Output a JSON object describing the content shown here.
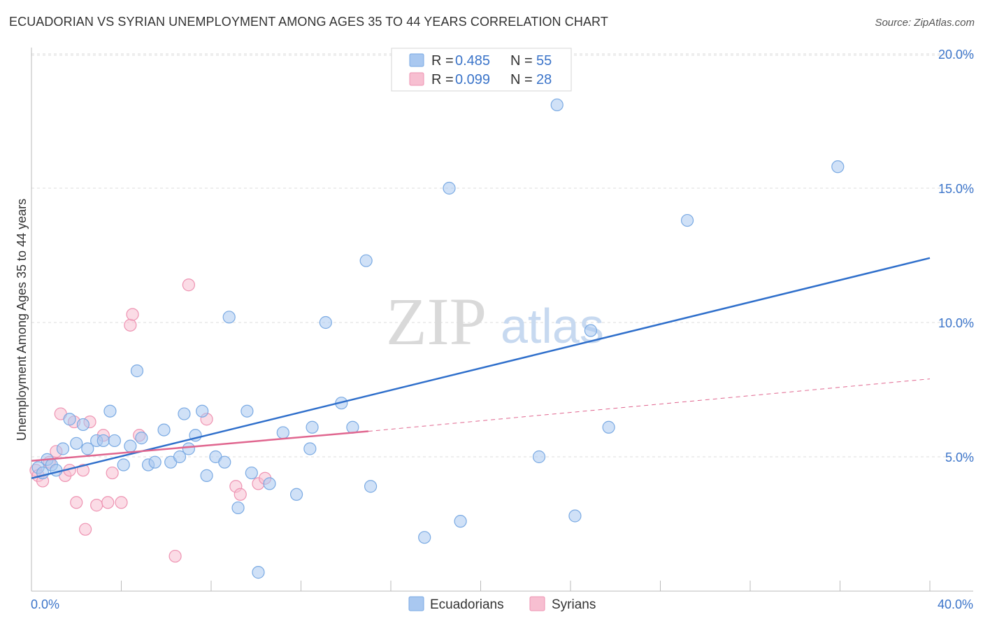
{
  "title": "ECUADORIAN VS SYRIAN UNEMPLOYMENT AMONG AGES 35 TO 44 YEARS CORRELATION CHART",
  "source": "Source: ZipAtlas.com",
  "watermark": {
    "part1": "ZIP",
    "part2": "atlas"
  },
  "colors": {
    "blue_fill": "#a9c8f0",
    "blue_stroke": "#7aaae3",
    "blue_line": "#2f6fcb",
    "pink_fill": "#f7bfd1",
    "pink_stroke": "#ee93b2",
    "pink_line": "#e0668f",
    "grid": "#dddddd",
    "axis_text": "#3b74c9"
  },
  "legend": {
    "rows": [
      {
        "r_label": "R =",
        "r_value": "0.485",
        "n_label": "N =",
        "n_value": "55",
        "series": "Ecuadorians"
      },
      {
        "r_label": "R =",
        "r_value": "0.099",
        "n_label": "N =",
        "n_value": "28",
        "series": "Syrians"
      }
    ]
  },
  "bottom_legend": [
    "Ecuadorians",
    "Syrians"
  ],
  "chart_data": {
    "type": "scatter",
    "title": "ECUADORIAN VS SYRIAN UNEMPLOYMENT AMONG AGES 35 TO 44 YEARS CORRELATION CHART",
    "xlabel": "",
    "ylabel": "Unemployment Among Ages 35 to 44 years",
    "xlim": [
      0,
      40
    ],
    "ylim": [
      0,
      20.5
    ],
    "x_tick_labels": {
      "left": "0.0%",
      "right": "40.0%"
    },
    "y_ticks": [
      {
        "value": 5,
        "label": "5.0%"
      },
      {
        "value": 10,
        "label": "10.0%"
      },
      {
        "value": 15,
        "label": "15.0%"
      },
      {
        "value": 20,
        "label": "20.0%"
      }
    ],
    "series": [
      {
        "name": "Ecuadorians",
        "color": "blue",
        "points": [
          [
            0.3,
            4.6
          ],
          [
            0.5,
            4.4
          ],
          [
            0.7,
            4.9
          ],
          [
            0.9,
            4.7
          ],
          [
            1.1,
            4.5
          ],
          [
            1.4,
            5.3
          ],
          [
            1.7,
            6.4
          ],
          [
            2.0,
            5.5
          ],
          [
            2.3,
            6.2
          ],
          [
            2.5,
            5.3
          ],
          [
            2.9,
            5.6
          ],
          [
            3.2,
            5.6
          ],
          [
            3.5,
            6.7
          ],
          [
            3.7,
            5.6
          ],
          [
            4.1,
            4.7
          ],
          [
            4.4,
            5.4
          ],
          [
            4.7,
            8.2
          ],
          [
            4.9,
            5.7
          ],
          [
            5.2,
            4.7
          ],
          [
            5.5,
            4.8
          ],
          [
            5.9,
            6.0
          ],
          [
            6.2,
            4.8
          ],
          [
            6.6,
            5.0
          ],
          [
            6.8,
            6.6
          ],
          [
            7.0,
            5.3
          ],
          [
            7.3,
            5.8
          ],
          [
            7.6,
            6.7
          ],
          [
            7.8,
            4.3
          ],
          [
            8.2,
            5.0
          ],
          [
            8.6,
            4.8
          ],
          [
            8.8,
            10.2
          ],
          [
            9.2,
            3.1
          ],
          [
            9.6,
            6.7
          ],
          [
            9.8,
            4.4
          ],
          [
            10.1,
            0.7
          ],
          [
            10.6,
            4.0
          ],
          [
            11.2,
            5.9
          ],
          [
            11.8,
            3.6
          ],
          [
            12.4,
            5.3
          ],
          [
            12.5,
            6.1
          ],
          [
            13.1,
            10.0
          ],
          [
            13.8,
            7.0
          ],
          [
            14.3,
            6.1
          ],
          [
            14.9,
            12.3
          ],
          [
            15.1,
            3.9
          ],
          [
            17.5,
            2.0
          ],
          [
            18.6,
            15.0
          ],
          [
            19.1,
            2.6
          ],
          [
            22.6,
            5.0
          ],
          [
            23.4,
            18.1
          ],
          [
            24.2,
            2.8
          ],
          [
            24.9,
            9.7
          ],
          [
            25.7,
            6.1
          ],
          [
            29.2,
            13.8
          ],
          [
            35.9,
            15.8
          ]
        ]
      },
      {
        "name": "Syrians",
        "color": "pink",
        "points": [
          [
            0.2,
            4.5
          ],
          [
            0.3,
            4.3
          ],
          [
            0.5,
            4.1
          ],
          [
            0.8,
            4.8
          ],
          [
            1.1,
            5.2
          ],
          [
            1.3,
            6.6
          ],
          [
            1.5,
            4.3
          ],
          [
            1.7,
            4.5
          ],
          [
            1.9,
            6.3
          ],
          [
            2.0,
            3.3
          ],
          [
            2.3,
            4.5
          ],
          [
            2.4,
            2.3
          ],
          [
            2.6,
            6.3
          ],
          [
            2.9,
            3.2
          ],
          [
            3.2,
            5.8
          ],
          [
            3.4,
            3.3
          ],
          [
            3.6,
            4.4
          ],
          [
            4.0,
            3.3
          ],
          [
            4.4,
            9.9
          ],
          [
            4.5,
            10.3
          ],
          [
            4.8,
            5.8
          ],
          [
            6.4,
            1.3
          ],
          [
            7.0,
            11.4
          ],
          [
            7.8,
            6.4
          ],
          [
            9.1,
            3.9
          ],
          [
            9.3,
            3.6
          ],
          [
            10.1,
            4.0
          ],
          [
            10.4,
            4.2
          ]
        ]
      }
    ],
    "trend_lines": [
      {
        "series": "Ecuadorians",
        "from": [
          0,
          4.2
        ],
        "to": [
          40,
          12.4
        ],
        "style": "solid"
      },
      {
        "series": "Syrians",
        "from": [
          0,
          4.85
        ],
        "to": [
          15,
          5.95
        ],
        "style": "solid"
      },
      {
        "series": "Syrians",
        "from": [
          15,
          5.95
        ],
        "to": [
          40,
          7.9
        ],
        "style": "dashed"
      }
    ],
    "grid": true,
    "legend_position": "top-center"
  }
}
